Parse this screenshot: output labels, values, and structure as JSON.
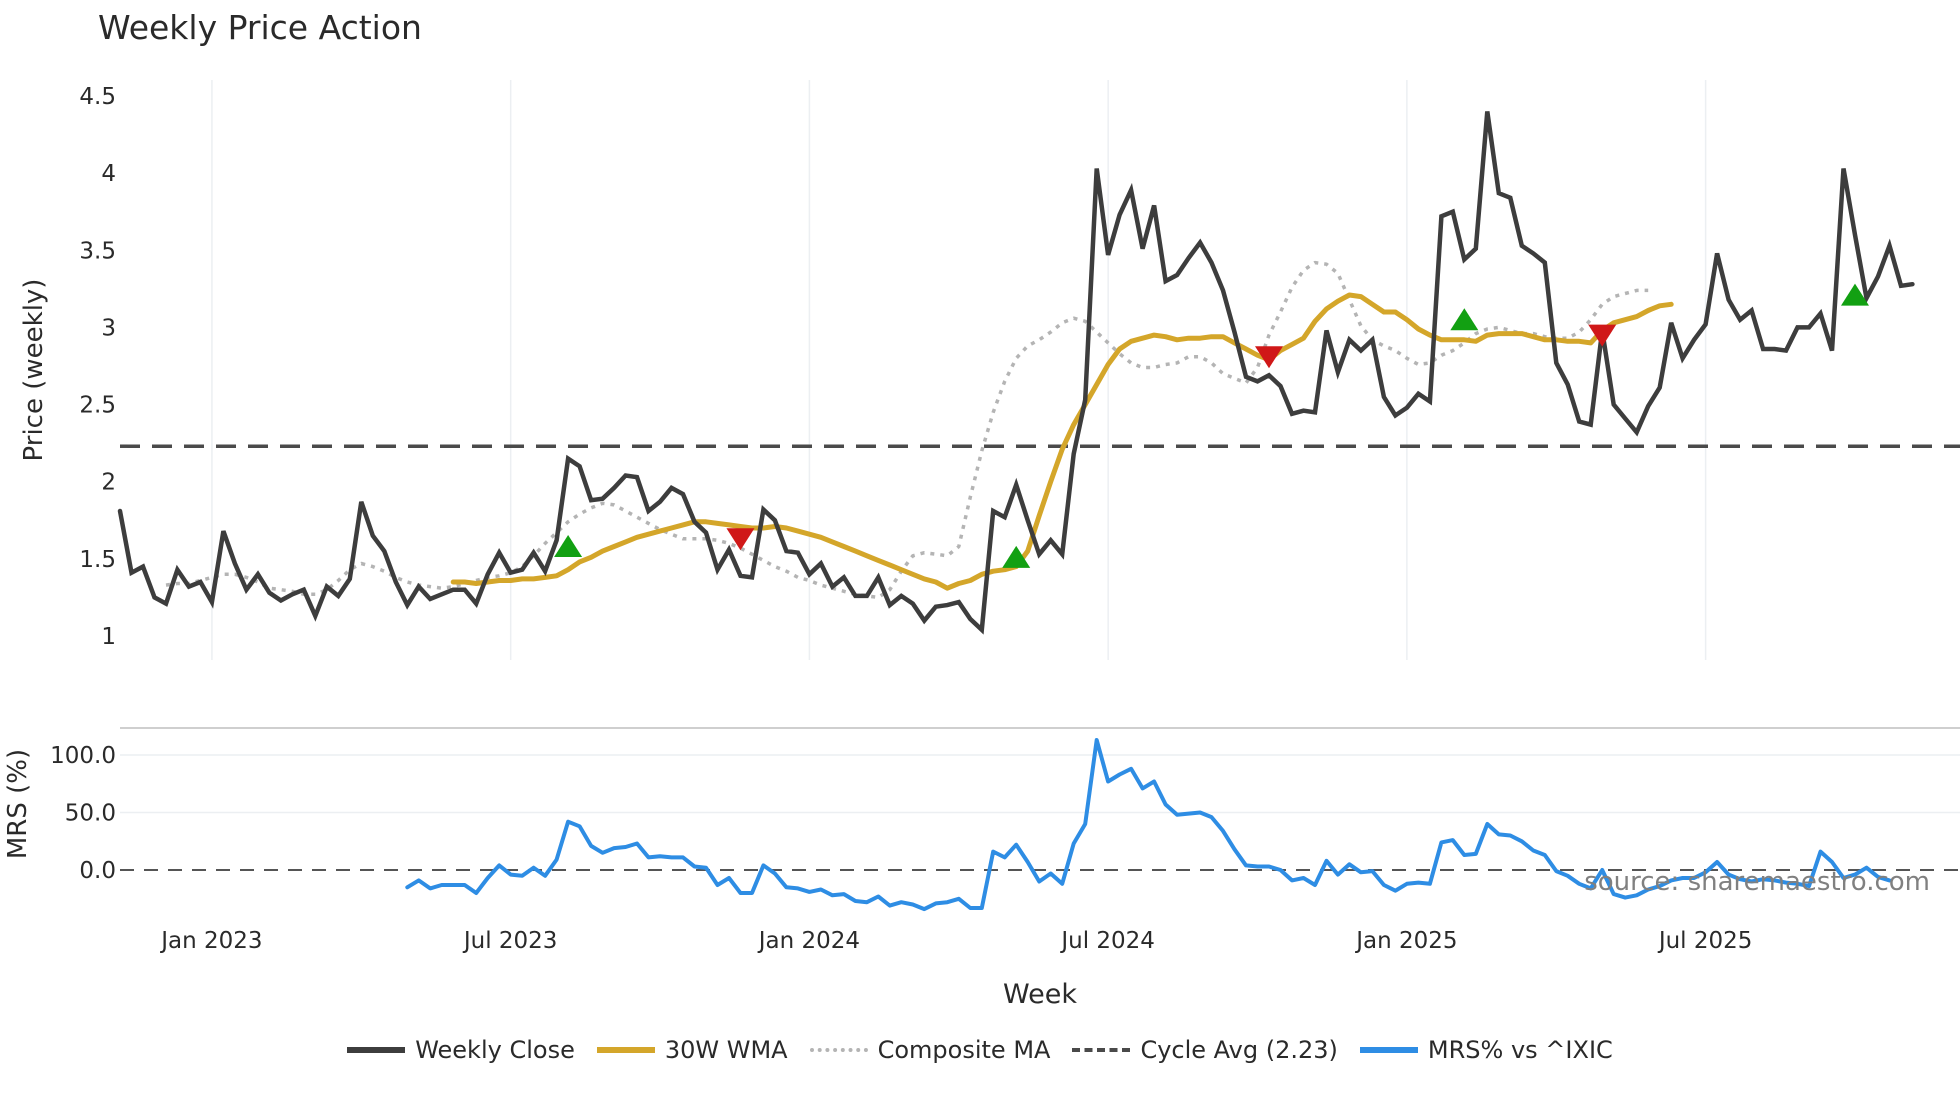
{
  "title": "Weekly Price Action",
  "watermark": "source: sharemaestro.com",
  "colors": {
    "close": "#3d3d3d",
    "wma": "#d4a62a",
    "composite": "#b4b4b4",
    "cycle": "#4a4a4a",
    "mrs": "#2e8de4",
    "buy": "#12a012",
    "sell": "#d01818",
    "grid": "#eceff2"
  },
  "legend": [
    {
      "key": "close",
      "label": "Weekly Close",
      "style": "solid"
    },
    {
      "key": "wma",
      "label": "30W WMA",
      "style": "solid"
    },
    {
      "key": "composite",
      "label": "Composite MA",
      "style": "dotted"
    },
    {
      "key": "cycle",
      "label": "Cycle Avg (2.23)",
      "style": "dashed"
    },
    {
      "key": "mrs",
      "label": "MRS% vs ^IXIC",
      "style": "solid"
    }
  ],
  "chart_data": [
    {
      "type": "line",
      "title": "Weekly Price Action",
      "xlabel": "Week",
      "ylabel": "Price (weekly)",
      "ylim": [
        0.85,
        4.55
      ],
      "yticks": [
        1,
        1.5,
        2,
        2.5,
        3,
        3.5,
        4,
        4.5
      ],
      "ytick_labels": [
        "1",
        "1.5",
        "2",
        "2.5",
        "3",
        "3.5",
        "4",
        "4.5"
      ],
      "xticks": [
        "Jan 2023",
        "Jul 2023",
        "Jan 2024",
        "Jul 2024",
        "Jan 2025",
        "Jul 2025"
      ],
      "xtick_week_index": [
        8,
        34,
        60,
        86,
        112,
        138
      ],
      "x_start": "2022-11-07",
      "x_unit": "week",
      "grid": "vertical",
      "series": [
        {
          "name": "Weekly Close",
          "key": "close",
          "start_index": 0,
          "values": [
            1.81,
            1.41,
            1.45,
            1.25,
            1.21,
            1.43,
            1.32,
            1.35,
            1.22,
            1.68,
            1.47,
            1.3,
            1.4,
            1.28,
            1.23,
            1.27,
            1.3,
            1.13,
            1.32,
            1.26,
            1.37,
            1.87,
            1.65,
            1.55,
            1.35,
            1.2,
            1.32,
            1.24,
            1.27,
            1.3,
            1.3,
            1.21,
            1.4,
            1.54,
            1.41,
            1.43,
            1.54,
            1.42,
            1.62,
            2.15,
            2.1,
            1.88,
            1.89,
            1.96,
            2.04,
            2.03,
            1.81,
            1.87,
            1.96,
            1.92,
            1.74,
            1.67,
            1.43,
            1.56,
            1.39,
            1.38,
            1.82,
            1.75,
            1.55,
            1.54,
            1.4,
            1.47,
            1.32,
            1.38,
            1.26,
            1.26,
            1.38,
            1.2,
            1.26,
            1.21,
            1.1,
            1.19,
            1.2,
            1.22,
            1.11,
            1.04,
            1.81,
            1.77,
            1.98,
            1.75,
            1.53,
            1.62,
            1.53,
            2.18,
            2.53,
            4.03,
            3.47,
            3.73,
            3.89,
            3.51,
            3.79,
            3.3,
            3.34,
            3.45,
            3.55,
            3.42,
            3.24,
            2.97,
            2.68,
            2.65,
            2.69,
            2.62,
            2.44,
            2.46,
            2.45,
            2.98,
            2.71,
            2.92,
            2.85,
            2.92,
            2.55,
            2.43,
            2.48,
            2.57,
            2.52,
            3.72,
            3.75,
            3.44,
            3.51,
            4.4,
            3.87,
            3.84,
            3.53,
            3.48,
            3.42,
            2.77,
            2.63,
            2.39,
            2.37,
            2.98,
            2.5,
            2.41,
            2.32,
            2.49,
            2.61,
            3.03,
            2.8,
            2.92,
            3.02,
            3.48,
            3.18,
            3.05,
            3.11,
            2.86,
            2.86,
            2.85,
            3.0,
            3.0,
            3.09,
            2.85,
            4.03,
            3.6,
            3.19,
            3.33,
            3.53,
            3.27,
            3.28
          ]
        },
        {
          "name": "30W WMA",
          "key": "wma",
          "start_index": 29,
          "values": [
            1.35,
            1.35,
            1.34,
            1.35,
            1.36,
            1.36,
            1.37,
            1.37,
            1.38,
            1.39,
            1.43,
            1.48,
            1.51,
            1.55,
            1.58,
            1.61,
            1.64,
            1.66,
            1.68,
            1.7,
            1.72,
            1.74,
            1.74,
            1.73,
            1.72,
            1.71,
            1.7,
            1.7,
            1.71,
            1.7,
            1.68,
            1.66,
            1.64,
            1.61,
            1.58,
            1.55,
            1.52,
            1.49,
            1.46,
            1.43,
            1.4,
            1.37,
            1.35,
            1.31,
            1.34,
            1.36,
            1.4,
            1.42,
            1.43,
            1.45,
            1.55,
            1.78,
            2.0,
            2.21,
            2.37,
            2.5,
            2.63,
            2.76,
            2.86,
            2.91,
            2.93,
            2.95,
            2.94,
            2.92,
            2.93,
            2.93,
            2.94,
            2.94,
            2.9,
            2.86,
            2.82,
            2.79,
            2.85,
            2.89,
            2.93,
            3.04,
            3.12,
            3.17,
            3.21,
            3.2,
            3.15,
            3.1,
            3.1,
            3.05,
            2.99,
            2.95,
            2.92,
            2.92,
            2.92,
            2.91,
            2.95,
            2.96,
            2.96,
            2.96,
            2.94,
            2.92,
            2.92,
            2.91,
            2.91,
            2.9,
            2.98,
            3.03,
            3.05,
            3.07,
            3.11,
            3.14,
            3.15
          ]
        },
        {
          "name": "Composite MA",
          "key": "composite",
          "start_index": 4,
          "values": [
            1.33,
            1.34,
            1.34,
            1.36,
            1.38,
            1.4,
            1.4,
            1.38,
            1.35,
            1.31,
            1.3,
            1.29,
            1.27,
            1.27,
            1.3,
            1.36,
            1.43,
            1.47,
            1.45,
            1.42,
            1.38,
            1.35,
            1.33,
            1.32,
            1.31,
            1.32,
            1.34,
            1.36,
            1.38,
            1.39,
            1.41,
            1.45,
            1.52,
            1.6,
            1.67,
            1.74,
            1.79,
            1.83,
            1.86,
            1.85,
            1.81,
            1.77,
            1.73,
            1.69,
            1.66,
            1.63,
            1.63,
            1.63,
            1.62,
            1.6,
            1.57,
            1.53,
            1.49,
            1.45,
            1.42,
            1.38,
            1.36,
            1.33,
            1.31,
            1.29,
            1.27,
            1.26,
            1.25,
            1.3,
            1.42,
            1.52,
            1.54,
            1.53,
            1.52,
            1.58,
            1.9,
            2.2,
            2.45,
            2.65,
            2.8,
            2.88,
            2.92,
            2.97,
            3.03,
            3.06,
            3.04,
            2.97,
            2.9,
            2.83,
            2.77,
            2.74,
            2.74,
            2.76,
            2.77,
            2.81,
            2.81,
            2.77,
            2.7,
            2.67,
            2.64,
            2.74,
            2.95,
            3.1,
            3.26,
            3.37,
            3.42,
            3.41,
            3.35,
            3.18,
            3.01,
            2.92,
            2.88,
            2.85,
            2.8,
            2.76,
            2.77,
            2.82,
            2.85,
            2.9,
            2.96,
            2.99,
            3.0,
            2.98,
            2.96,
            2.96,
            2.94,
            2.93,
            2.93,
            2.97,
            3.05,
            3.15,
            3.2,
            3.22,
            3.24,
            3.24
          ]
        },
        {
          "name": "Cycle Avg (2.23)",
          "key": "cycle",
          "constant": 2.23
        },
        {
          "name": "Buy signals",
          "key": "buy",
          "markers": [
            {
              "i": 39,
              "v": 1.57
            },
            {
              "i": 78,
              "v": 1.5
            },
            {
              "i": 117,
              "v": 3.04
            },
            {
              "i": 151,
              "v": 3.2
            }
          ]
        },
        {
          "name": "Sell signals",
          "key": "sell",
          "markers": [
            {
              "i": 54,
              "v": 1.64
            },
            {
              "i": 100,
              "v": 2.82
            },
            {
              "i": 129,
              "v": 2.96
            }
          ]
        }
      ]
    },
    {
      "type": "line",
      "title": "",
      "ylabel": "MRS (%)",
      "ylim": [
        -45,
        125
      ],
      "yticks": [
        0,
        50,
        100
      ],
      "ytick_labels": [
        "0.0",
        "50.0",
        "100.0"
      ],
      "zero_line": "dashed",
      "series": [
        {
          "name": "MRS% vs ^IXIC",
          "key": "mrs",
          "start_index": 25,
          "values": [
            -15,
            -9,
            -16,
            -13,
            -13,
            -13,
            -20,
            -7,
            4,
            -4,
            -5,
            2,
            -5,
            9,
            42,
            38,
            21,
            15,
            19,
            20,
            23,
            11,
            12,
            11,
            11,
            3,
            2,
            -13,
            -7,
            -20,
            -20,
            4,
            -3,
            -15,
            -16,
            -19,
            -17,
            -22,
            -21,
            -27,
            -28,
            -23,
            -31,
            -28,
            -30,
            -34,
            -29,
            -28,
            -25,
            -33,
            -33,
            16,
            11,
            22,
            7,
            -10,
            -3,
            -12,
            23,
            40,
            113,
            77,
            83,
            88,
            71,
            77,
            57,
            48,
            49,
            50,
            46,
            34,
            18,
            4,
            3,
            3,
            0,
            -9,
            -7,
            -13,
            8,
            -4,
            5,
            -2,
            -1,
            -13,
            -18,
            -12,
            -11,
            -12,
            24,
            26,
            13,
            14,
            40,
            31,
            30,
            25,
            17,
            13,
            -1,
            -5,
            -12,
            -16,
            0,
            -21,
            -24,
            -22,
            -17,
            -14,
            -9,
            -7,
            -7,
            -2,
            7,
            -4,
            -8,
            -10,
            -8,
            -9,
            -11,
            -12,
            -14,
            16,
            7,
            -7,
            -4,
            2,
            -6,
            -9
          ]
        }
      ]
    }
  ],
  "axes": {
    "price_ylabel": "Price (weekly)",
    "mrs_ylabel": "MRS (%)",
    "xlabel": "Week"
  }
}
